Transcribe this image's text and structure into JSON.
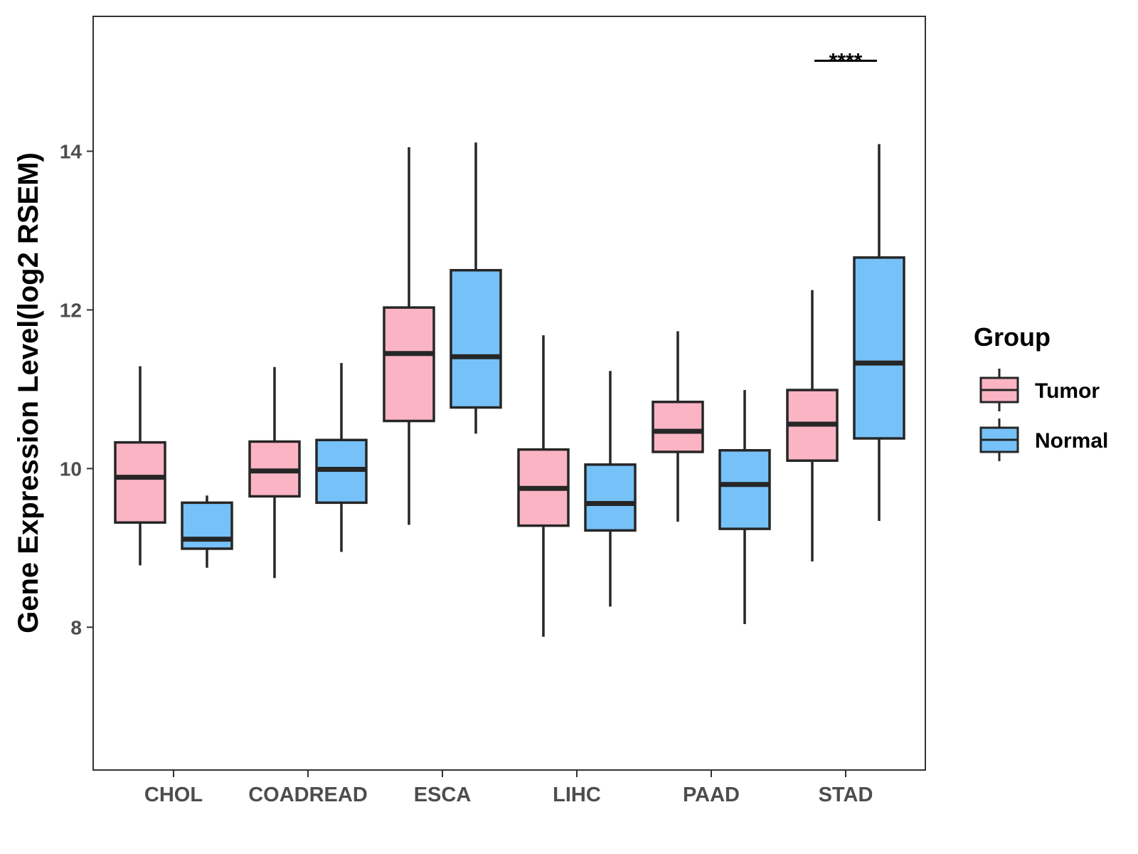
{
  "chart_data": {
    "type": "boxplot",
    "title": "",
    "xlabel": "",
    "ylabel": "Gene Expression Level(log2 RSEM)",
    "ylim": [
      6.2,
      15.7
    ],
    "yticks": [
      "8",
      "10",
      "12",
      "14"
    ],
    "ytick_values": [
      8,
      10,
      12,
      14
    ],
    "grid": false,
    "categories": [
      "CHOL",
      "COADREAD",
      "ESCA",
      "LIHC",
      "PAAD",
      "STAD"
    ],
    "legend": {
      "title": "Group",
      "position": "right",
      "entries": [
        "Tumor",
        "Normal"
      ]
    },
    "series": [
      {
        "name": "Tumor",
        "color": "#fbb4c4",
        "boxes": [
          {
            "category": "CHOL",
            "whisker_low": 8.78,
            "q1": 9.32,
            "median": 9.89,
            "q3": 10.33,
            "whisker_high": 11.29
          },
          {
            "category": "COADREAD",
            "whisker_low": 8.62,
            "q1": 9.65,
            "median": 9.97,
            "q3": 10.34,
            "whisker_high": 11.28
          },
          {
            "category": "ESCA",
            "whisker_low": 9.29,
            "q1": 10.6,
            "median": 11.45,
            "q3": 12.03,
            "whisker_high": 14.05
          },
          {
            "category": "LIHC",
            "whisker_low": 7.88,
            "q1": 9.28,
            "median": 9.75,
            "q3": 10.24,
            "whisker_high": 11.68
          },
          {
            "category": "PAAD",
            "whisker_low": 9.33,
            "q1": 10.21,
            "median": 10.47,
            "q3": 10.84,
            "whisker_high": 11.73
          },
          {
            "category": "STAD",
            "whisker_low": 8.83,
            "q1": 10.1,
            "median": 10.56,
            "q3": 10.99,
            "whisker_high": 12.25
          }
        ]
      },
      {
        "name": "Normal",
        "color": "#76c1f8",
        "boxes": [
          {
            "category": "CHOL",
            "whisker_low": 8.75,
            "q1": 8.99,
            "median": 9.11,
            "q3": 9.57,
            "whisker_high": 9.66
          },
          {
            "category": "COADREAD",
            "whisker_low": 8.95,
            "q1": 9.57,
            "median": 9.99,
            "q3": 10.36,
            "whisker_high": 11.33
          },
          {
            "category": "ESCA",
            "whisker_low": 10.44,
            "q1": 10.77,
            "median": 11.41,
            "q3": 12.5,
            "whisker_high": 14.11
          },
          {
            "category": "LIHC",
            "whisker_low": 8.26,
            "q1": 9.22,
            "median": 9.56,
            "q3": 10.05,
            "whisker_high": 11.23
          },
          {
            "category": "PAAD",
            "whisker_low": 8.04,
            "q1": 9.24,
            "median": 9.8,
            "q3": 10.23,
            "whisker_high": 10.99
          },
          {
            "category": "STAD",
            "whisker_low": 9.34,
            "q1": 10.38,
            "median": 11.33,
            "q3": 12.66,
            "whisker_high": 14.09
          }
        ]
      }
    ],
    "annotations": [
      {
        "category": "STAD",
        "text": "****",
        "y": 15.14
      }
    ]
  },
  "colors": {
    "tumor": "#fbb4c4",
    "normal": "#76c1f8",
    "outline": "#262626",
    "panel_border": "#333333"
  }
}
